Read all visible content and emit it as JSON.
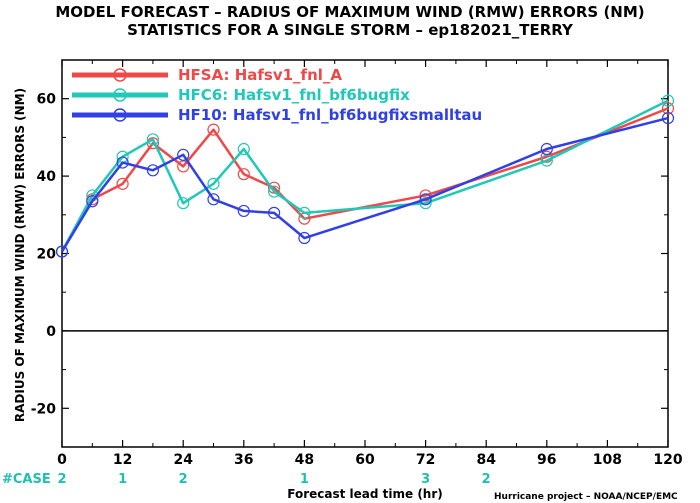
{
  "chart_data": {
    "type": "line",
    "title": "MODEL FORECAST – RADIUS OF MAXIMUM WIND (RMW) ERRORS (NM)",
    "subtitle": "STATISTICS FOR A SINGLE STORM – ep182021_TERRY",
    "xlabel": "Forecast lead time (hr)",
    "ylabel": "RADIUS OF MAXIMUM WIND (RMW) ERRORS (NM)",
    "xlim": [
      0,
      120
    ],
    "ylim": [
      -30,
      70
    ],
    "xticks": [
      0,
      12,
      24,
      36,
      48,
      60,
      72,
      84,
      96,
      108,
      120
    ],
    "yticks": [
      -20,
      0,
      20,
      40,
      60
    ],
    "legend_position": "top-left",
    "series": [
      {
        "name": "HFSA: Hafsv1_fnl_A",
        "color": "#f04848",
        "x": [
          0,
          6,
          12,
          18,
          24,
          30,
          36,
          42,
          48,
          72,
          96,
          120
        ],
        "y": [
          20.5,
          34,
          38,
          48.5,
          42.5,
          52,
          40.5,
          37,
          29,
          35,
          45,
          57.5
        ]
      },
      {
        "name": "HFC6: Hafsv1_fnl_bf6bugfix",
        "color": "#20c8b8",
        "x": [
          0,
          6,
          12,
          18,
          24,
          30,
          36,
          42,
          48,
          72,
          96,
          120
        ],
        "y": [
          20.5,
          35,
          45,
          49.5,
          33,
          38,
          47,
          36,
          30.5,
          33,
          44,
          59.5
        ]
      },
      {
        "name": "HF10: Hafsv1_fnl_bf6bugfixsmalltau",
        "color": "#3040e8",
        "x": [
          0,
          6,
          12,
          18,
          24,
          30,
          36,
          42,
          48,
          72,
          96,
          120
        ],
        "y": [
          20.5,
          33.5,
          43.5,
          41.5,
          45.5,
          34,
          31,
          30.5,
          24,
          34,
          47,
          55
        ]
      }
    ],
    "cases": {
      "label": "#CASE",
      "x": [
        0,
        12,
        24,
        48,
        72,
        84
      ],
      "values": [
        "2",
        "1",
        "2",
        "1",
        "3",
        "2"
      ]
    }
  },
  "credit": "Hurricane project – NOAA/NCEP/EMC"
}
